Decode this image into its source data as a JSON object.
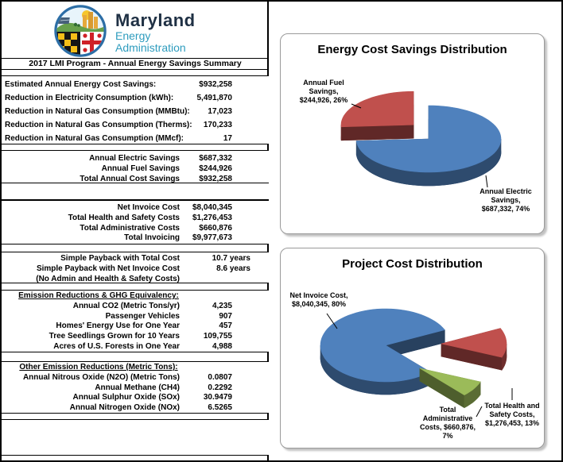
{
  "page": {
    "logo": {
      "title": "Maryland",
      "subtitle_line1": "Energy",
      "subtitle_line2": "Administration"
    },
    "sheet_header": "2017 LMI Program - Annual Energy Savings Summary",
    "sections": [
      {
        "name": "energy-savings-summary",
        "rows": [
          {
            "label": "Estimated Annual Energy Cost Savings:",
            "value": "$932,258"
          },
          {
            "label": "Reduction in Electricity Consumption (kWh):",
            "value": "5,491,870"
          },
          {
            "label": "Reduction in Natural Gas Consumption (MMBtu):",
            "value": "17,023"
          },
          {
            "label": "Reduction in Natural Gas Consumption (Therms):",
            "value": "170,233"
          },
          {
            "label": "Reduction in Natural Gas Consumption (MMcf):",
            "value": "17"
          }
        ]
      },
      {
        "name": "annual-savings",
        "rows": [
          {
            "label": "Annual Electric Savings",
            "value": "$687,332"
          },
          {
            "label": "Annual Fuel Savings",
            "value": "$244,926"
          },
          {
            "label": "Total Annual Cost Savings",
            "value": "$932,258"
          }
        ]
      },
      {
        "name": "invoicing",
        "rows": [
          {
            "label": "Net Invoice Cost",
            "value": "$8,040,345"
          },
          {
            "label": "Total Health and Safety Costs",
            "value": "$1,276,453"
          },
          {
            "label": "Total Administrative Costs",
            "value": "$660,876"
          },
          {
            "label": "Total Invoicing",
            "value": "$9,977,673"
          }
        ]
      },
      {
        "name": "payback",
        "rows": [
          {
            "label": "Simple Payback with Total Cost",
            "value": "10.7",
            "unit": "years"
          },
          {
            "label": "Simple Payback with Net Invoice Cost",
            "value": "8.6",
            "unit": "years"
          },
          {
            "label": "(No Admin and Health & Safety Costs)",
            "value": ""
          }
        ]
      },
      {
        "name": "emissions-ghg",
        "heading": "Emission Reductions & GHG Equivalency:",
        "rows": [
          {
            "label": "Annual CO2 (Metric Tons/yr)",
            "value": "4,235"
          },
          {
            "label": "Passenger Vehicles",
            "value": "907"
          },
          {
            "label": "Homes' Energy Use for One Year",
            "value": "457"
          },
          {
            "label": "Tree Seedlings Grown for 10 Years",
            "value": "109,755"
          },
          {
            "label": "Acres of U.S. Forests in One Year",
            "value": "4,988"
          }
        ]
      },
      {
        "name": "other-emissions",
        "heading": "Other Emission Reductions (Metric Tons):",
        "rows": [
          {
            "label": "Annual Nitrous Oxide (N2O) (Metric Tons)",
            "value": "0.0807"
          },
          {
            "label": "Annual Methane (CH4)",
            "value": "0.2292"
          },
          {
            "label": "Annual Sulphur Oxide (SOx)",
            "value": "30.9479"
          },
          {
            "label": "Annual Nitrogen Oxide (NOx)",
            "value": "6.5265"
          }
        ]
      }
    ]
  },
  "chart_data": [
    {
      "type": "pie",
      "title": "Energy Cost Savings Distribution",
      "style": "3d-exploded",
      "legend": "none",
      "slices": [
        {
          "name": "Annual Electric Savings",
          "value": 687332,
          "percent": 74,
          "color": "#4F81BD",
          "label_lines": [
            "Annual Electric",
            "Savings,",
            "$687,332, 74%"
          ]
        },
        {
          "name": "Annual Fuel Savings",
          "value": 244926,
          "percent": 26,
          "color": "#C0504D",
          "label_lines": [
            "Annual Fuel",
            "Savings,",
            "$244,926, 26%"
          ]
        }
      ]
    },
    {
      "type": "pie",
      "title": "Project Cost Distribution",
      "style": "3d-exploded",
      "legend": "none",
      "slices": [
        {
          "name": "Net Invoice Cost",
          "value": 8040345,
          "percent": 80,
          "color": "#4F81BD",
          "label_lines": [
            "Net Invoice Cost,",
            "$8,040,345, 80%"
          ]
        },
        {
          "name": "Total Health and Safety Costs",
          "value": 1276453,
          "percent": 13,
          "color": "#C0504D",
          "label_lines": [
            "Total Health and",
            "Safety Costs,",
            "$1,276,453, 13%"
          ]
        },
        {
          "name": "Total Administrative Costs",
          "value": 660876,
          "percent": 7,
          "color": "#9BBB59",
          "label_lines": [
            "Total",
            "Administrative",
            "Costs, $660,876,",
            "7%"
          ]
        }
      ]
    }
  ]
}
